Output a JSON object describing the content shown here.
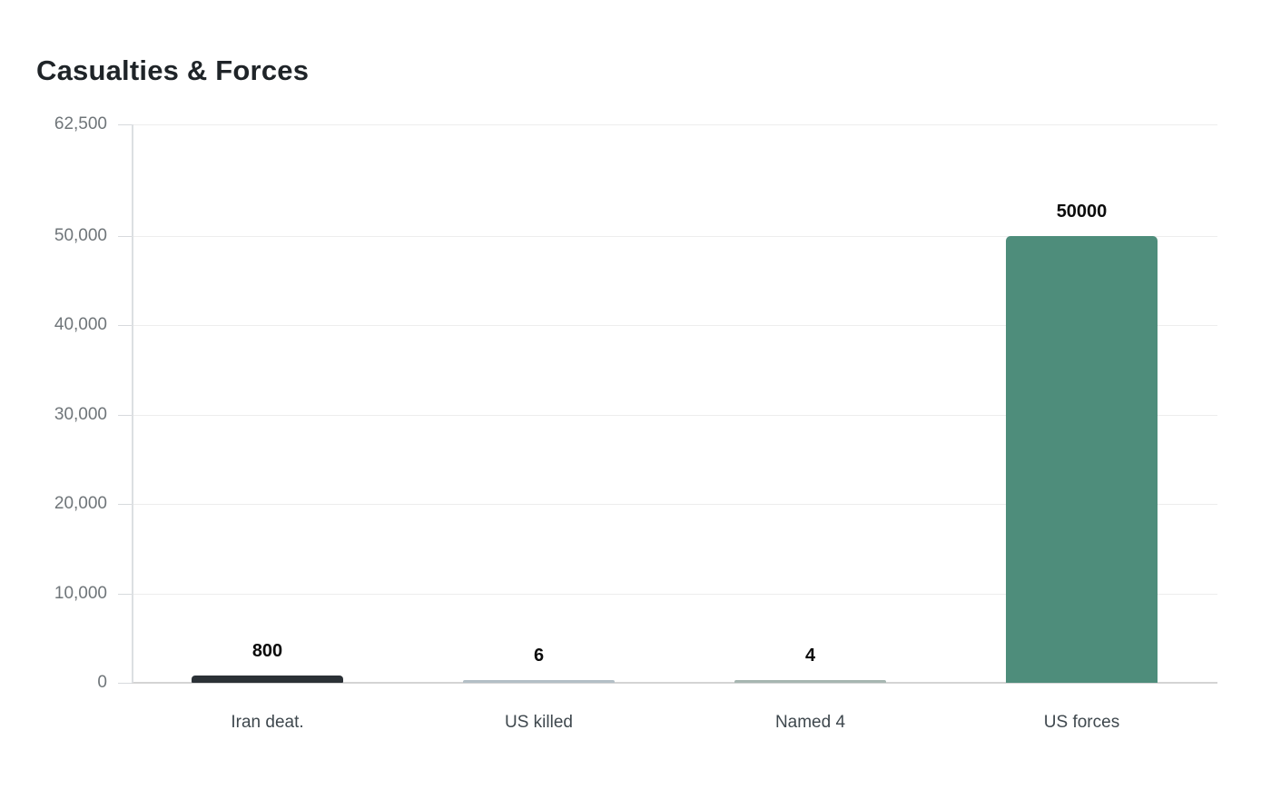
{
  "chart": {
    "title": "Casualties & Forces"
  },
  "chart_data": {
    "type": "bar",
    "title": "Casualties & Forces",
    "categories": [
      "Iran deat.",
      "US killed",
      "Named 4",
      "US forces"
    ],
    "values": [
      800,
      6,
      4,
      50000
    ],
    "value_labels": [
      "800",
      "6",
      "4",
      "50000"
    ],
    "bar_colors": [
      "#2b3136",
      "#b3bfc6",
      "#a6b6b1",
      "#4e8d7b"
    ],
    "bar_patterns": [
      "dots",
      "none",
      "none",
      "none"
    ],
    "xlabel": "",
    "ylabel": "",
    "ylim": [
      0,
      62500
    ],
    "yticks": [
      {
        "value": 62500,
        "label": "62,500"
      },
      {
        "value": 50000,
        "label": "50,000"
      },
      {
        "value": 40000,
        "label": "40,000"
      },
      {
        "value": 30000,
        "label": "30,000"
      },
      {
        "value": 20000,
        "label": "20,000"
      },
      {
        "value": 10000,
        "label": "10,000"
      },
      {
        "value": 0,
        "label": "0"
      }
    ],
    "grid": true,
    "legend_position": "none",
    "colors": {
      "grid": "#ededed",
      "axis": "#dcdfe2",
      "baseline": "#d4d4d4",
      "tick_label": "#6f7579",
      "x_label": "#3f484e",
      "value_label": "#0b0b0b",
      "title": "#1f2428",
      "background": "#ffffff"
    }
  }
}
